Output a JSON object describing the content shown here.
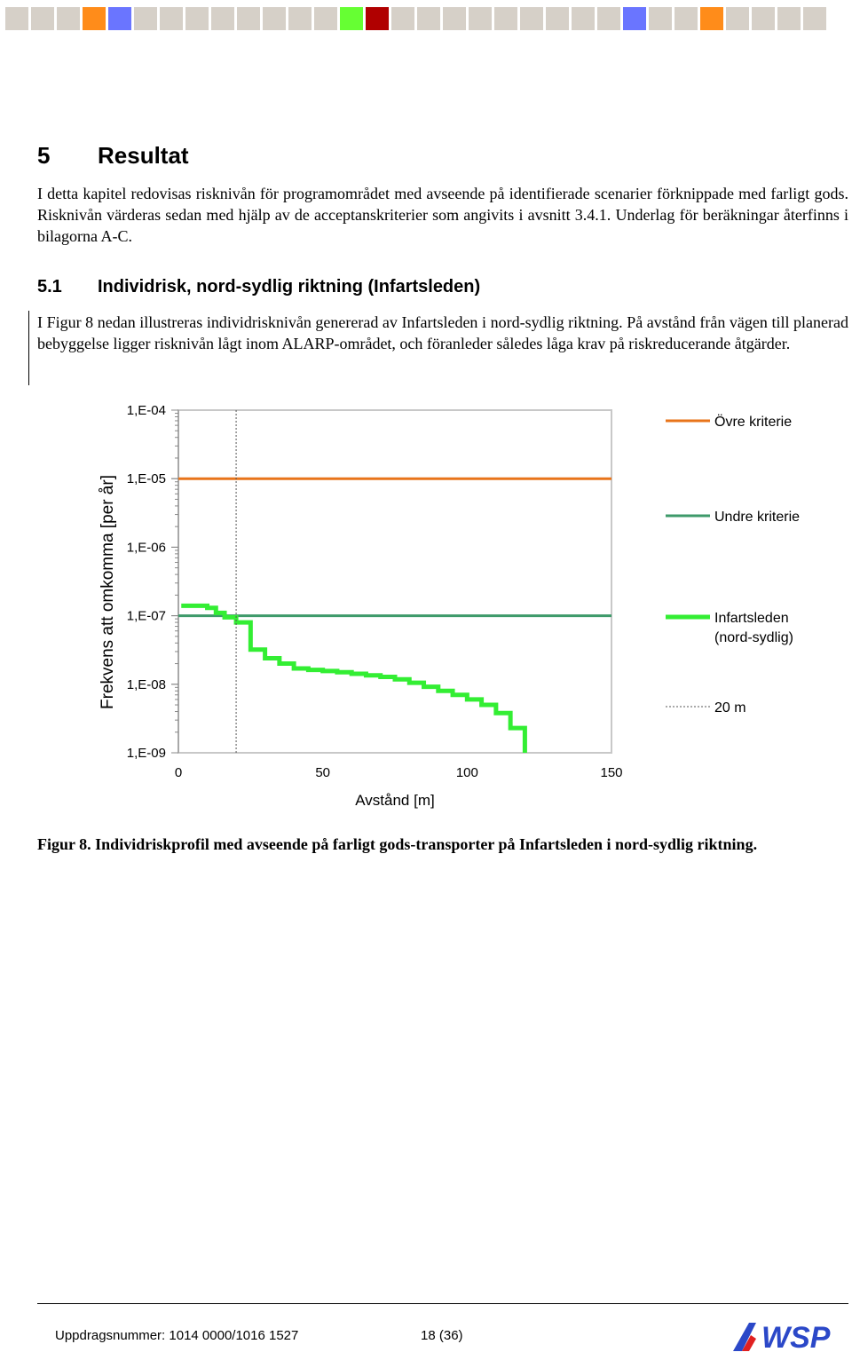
{
  "top_strip": {
    "colors": [
      "#d6d0c8",
      "#d6d0c8",
      "#d6d0c8",
      "#ff8c1a",
      "#6a75ff",
      "#d6d0c8",
      "#d6d0c8",
      "#d6d0c8",
      "#d6d0c8",
      "#d6d0c8",
      "#d6d0c8",
      "#d6d0c8",
      "#d6d0c8",
      "#66ff33",
      "#b00000",
      "#d6d0c8",
      "#d6d0c8",
      "#d6d0c8",
      "#d6d0c8",
      "#d6d0c8",
      "#d6d0c8",
      "#d6d0c8",
      "#d6d0c8",
      "#d6d0c8",
      "#6a75ff",
      "#d6d0c8",
      "#d6d0c8",
      "#ff8c1a",
      "#d6d0c8",
      "#d6d0c8",
      "#d6d0c8",
      "#d6d0c8"
    ]
  },
  "section": {
    "number": "5",
    "title": "Resultat",
    "intro": "I detta kapitel redovisas risknivån för programområdet med avseende på identifierade scenarier förknippade med farligt gods. Risknivån värderas sedan med hjälp av de acceptanskriterier som angivits i avsnitt 3.4.1. Underlag för beräkningar återfinns i bilagorna A-C."
  },
  "subsection": {
    "number": "5.1",
    "title": "Individrisk, nord-sydlig riktning (Infartsleden)",
    "paragraph": "I Figur 8 nedan illustreras individrisknivån genererad av Infartsleden i nord-sydlig riktning. På avstånd från vägen till planerad bebyggelse ligger risknivån lågt inom ALARP-området, och föranleder således låga krav på riskreducerande åtgärder."
  },
  "chart_data": {
    "type": "line",
    "xlabel": "Avstånd [m]",
    "ylabel": "Frekvens att omkomma [per år]",
    "xlim": [
      0,
      150
    ],
    "xticks": [
      "0",
      "50",
      "100",
      "150"
    ],
    "y_scale": "log",
    "ylim": [
      1e-09,
      0.0001
    ],
    "yticks": [
      "1,E-09",
      "1,E-08",
      "1,E-07",
      "1,E-06",
      "1,E-05",
      "1,E-04"
    ],
    "legend_position": "right",
    "series": [
      {
        "name": "Övre kriterie",
        "color": "#e8741a",
        "style": "solid",
        "x": [
          0,
          150
        ],
        "y": [
          1e-05,
          1e-05
        ]
      },
      {
        "name": "Undre kriterie",
        "color": "#3e9a6a",
        "style": "solid",
        "x": [
          0,
          150
        ],
        "y": [
          1e-07,
          1e-07
        ]
      },
      {
        "name": "Infartsleden\n(nord-sydlig)",
        "color": "#33ee33",
        "style": "step",
        "x": [
          1,
          10,
          13,
          16,
          20,
          25,
          30,
          35,
          40,
          45,
          50,
          55,
          60,
          65,
          70,
          75,
          80,
          85,
          90,
          95,
          100,
          105,
          110,
          115,
          120
        ],
        "y": [
          1.4e-07,
          1.3e-07,
          1.1e-07,
          9.5e-08,
          8e-08,
          3.2e-08,
          2.4e-08,
          2e-08,
          1.7e-08,
          1.62e-08,
          1.56e-08,
          1.5e-08,
          1.42e-08,
          1.35e-08,
          1.28e-08,
          1.18e-08,
          1.05e-08,
          9.2e-09,
          8e-09,
          7e-09,
          6e-09,
          5e-09,
          3.8e-09,
          2.3e-09,
          1e-09
        ]
      },
      {
        "name": "20 m",
        "color": "#555555",
        "style": "dotted",
        "x": [
          20,
          20
        ],
        "y": [
          1e-09,
          0.0001
        ]
      }
    ]
  },
  "caption": "Figur 8. Individriskprofil med avseende på farligt gods-transporter på Infartsleden i nord-sydlig riktning.",
  "footer": {
    "project": "Uppdragsnummer: 1014 0000/1016 1527",
    "page": "18 (36)",
    "logo_text": "WSP",
    "logo_color": "#2b48c8"
  }
}
